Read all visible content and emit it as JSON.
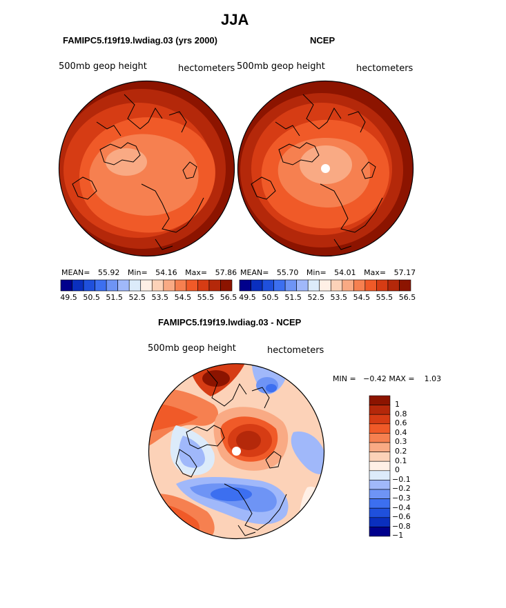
{
  "main_title": "JJA",
  "panels": [
    {
      "title": "FAMIPC5.f19f19.lwdiag.03 (yrs 2000)",
      "variable": "500mb geop height",
      "units": "hectometers",
      "mean_label": "MEAN=",
      "mean": "55.92",
      "min_label": "Min=",
      "min": "54.16",
      "max_label": "Max=",
      "max": "57.86"
    },
    {
      "title": "NCEP",
      "variable": "500mb geop height",
      "units": "hectometers",
      "mean_label": "MEAN=",
      "mean": "55.70",
      "min_label": "Min=",
      "min": "54.01",
      "max_label": "Max=",
      "max": "57.17"
    }
  ],
  "diff_panel": {
    "title": "FAMIPC5.f19f19.lwdiag.03 - NCEP",
    "variable": "500mb geop height",
    "units": "hectometers",
    "minmax": "MIN =   −0.42 MAX =    1.03"
  },
  "top_colorbar": {
    "ticks": [
      "49.5",
      "50.5",
      "51.5",
      "52.5",
      "53.5",
      "54.5",
      "55.5",
      "56.5"
    ],
    "colors": [
      "#00008c",
      "#0a2fbe",
      "#1f50dc",
      "#3c6ff0",
      "#6e94f5",
      "#a0b8fa",
      "#dcebfa",
      "#fff0e6",
      "#fcd2b8",
      "#f9aa84",
      "#f68050",
      "#f05a28",
      "#d63c14",
      "#b4280a",
      "#8c1400"
    ]
  },
  "diff_colorbar": {
    "labels": [
      "1",
      "0.8",
      "0.6",
      "0.4",
      "0.3",
      "0.2",
      "0.1",
      "0",
      "−0.1",
      "−0.2",
      "−0.3",
      "−0.4",
      "−0.6",
      "−0.8",
      "−1"
    ],
    "colors": [
      "#8c1400",
      "#b4280a",
      "#d63c14",
      "#f05a28",
      "#f68050",
      "#f9aa84",
      "#fcd2b8",
      "#fff0e6",
      "#dcebfa",
      "#a0b8fa",
      "#6e94f5",
      "#3c6ff0",
      "#1f50dc",
      "#0a2fbe",
      "#00008c"
    ]
  },
  "chart_data": [
    {
      "type": "heatmap",
      "title": "FAMIPC5.f19f19.lwdiag.03 (yrs 2000)",
      "variable": "500mb geop height",
      "units": "hectometers",
      "projection": "north polar stereographic",
      "mean": 55.92,
      "min": 54.16,
      "max": 57.86,
      "levels": [
        49.5,
        50.0,
        50.5,
        51.0,
        51.5,
        52.0,
        52.5,
        53.0,
        53.5,
        54.0,
        54.5,
        55.0,
        55.5,
        56.0,
        56.5
      ]
    },
    {
      "type": "heatmap",
      "title": "NCEP",
      "variable": "500mb geop height",
      "units": "hectometers",
      "projection": "north polar stereographic",
      "mean": 55.7,
      "min": 54.01,
      "max": 57.17,
      "levels": [
        49.5,
        50.0,
        50.5,
        51.0,
        51.5,
        52.0,
        52.5,
        53.0,
        53.5,
        54.0,
        54.5,
        55.0,
        55.5,
        56.0,
        56.5
      ]
    },
    {
      "type": "heatmap",
      "title": "FAMIPC5.f19f19.lwdiag.03 - NCEP",
      "variable": "500mb geop height",
      "units": "hectometers",
      "projection": "north polar stereographic",
      "min": -0.42,
      "max": 1.03,
      "levels": [
        -1,
        -0.8,
        -0.6,
        -0.4,
        -0.3,
        -0.2,
        -0.1,
        0,
        0.1,
        0.2,
        0.3,
        0.4,
        0.6,
        0.8,
        1
      ]
    }
  ]
}
